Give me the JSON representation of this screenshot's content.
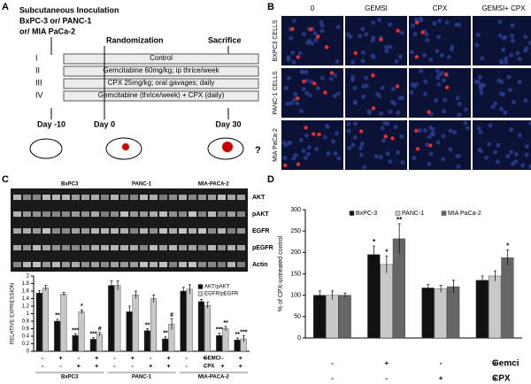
{
  "panel_a": {
    "letter": "A",
    "inoculation": [
      "Subcutaneous Inoculation",
      "BxPC-3 or/ PANC-1",
      "or/ MIA PaCa-2"
    ],
    "randomization": "Randomization",
    "sacrifice": "Sacrifice",
    "groups": [
      {
        "id": "I",
        "text": "Control"
      },
      {
        "id": "II",
        "text": "Gemcitabine 60mg/kg; ip thrice/week"
      },
      {
        "id": "III",
        "text": "CPX 25mg/kg; oral gavages; daily"
      },
      {
        "id": "IV",
        "text": "Gemcitabine (thrice/week) + CPX (daily)"
      }
    ],
    "days": [
      "Day -10",
      "Day 0",
      "Day 30"
    ],
    "question": "?"
  },
  "panel_b": {
    "letter": "B",
    "columns": [
      "0",
      "GEMSI",
      "CPX",
      "GEMSI+ CPX"
    ],
    "rows": [
      "BXPC3 CELLS",
      "PANC-1 CELLS",
      "MIA PaCa-2"
    ]
  },
  "panel_c": {
    "letter": "C",
    "blot_rows": [
      "AKT",
      "pAKT",
      "EGFR",
      "pEGFR",
      "Actin"
    ]
  },
  "panel_d": {
    "letter": "D"
  },
  "chart_data": [
    {
      "type": "bar",
      "ylabel": "RELATIVE EXPRESSION",
      "ylim": [
        0,
        2
      ],
      "yticks": [
        0,
        0.2,
        0.4,
        0.6,
        0.8,
        1,
        1.2,
        1.4,
        1.6,
        1.8,
        2
      ],
      "groups": [
        "BxPC3",
        "PANC-1",
        "MIA-PACA-2"
      ],
      "gemci_label": "GEMCI",
      "cpx_label": "CPX",
      "gemci": [
        "-",
        "+",
        "-",
        "+",
        "-",
        "+",
        "-",
        "+",
        "-",
        "+",
        "-",
        "+"
      ],
      "cpx": [
        "-",
        "-",
        "+",
        "+",
        "-",
        "-",
        "+",
        "+",
        "-",
        "-",
        "+",
        "+"
      ],
      "legend": "upper right",
      "series": [
        {
          "name": "AKT/pAKT",
          "color": "#111111",
          "values": [
            1.55,
            0.8,
            0.42,
            0.32,
            1.75,
            1.05,
            0.55,
            0.33,
            1.6,
            1.32,
            0.42,
            0.3
          ],
          "errors": [
            0.06,
            0.05,
            0.04,
            0.04,
            0.12,
            0.15,
            0.05,
            0.05,
            0.1,
            0.06,
            0.06,
            0.05
          ],
          "annotations": [
            null,
            "**",
            "***",
            "***",
            null,
            null,
            "**",
            "**",
            null,
            null,
            "***",
            "**"
          ]
        },
        {
          "name": "EGFR/pEGFR",
          "color": "#c8c8c8",
          "values": [
            1.68,
            1.52,
            1.05,
            0.45,
            1.75,
            1.5,
            1.4,
            0.72,
            1.65,
            1.22,
            0.6,
            0.33
          ],
          "errors": [
            0.07,
            0.05,
            0.05,
            0.05,
            0.12,
            0.1,
            0.1,
            0.15,
            0.12,
            0.08,
            0.06,
            0.08
          ],
          "annotations": [
            null,
            null,
            "*",
            "#",
            null,
            null,
            null,
            "#",
            null,
            null,
            "**",
            "***"
          ]
        }
      ]
    },
    {
      "type": "bar",
      "ylabel": "% of CPX-untreated control",
      "ylim": [
        0,
        300
      ],
      "yticks": [
        0,
        50,
        100,
        150,
        200,
        250,
        300
      ],
      "gemci_label": "Gemci",
      "cpx_label": "CPX",
      "gemci": [
        "-",
        "+",
        "-",
        "+"
      ],
      "cpx": [
        "-",
        "-",
        "+",
        "+"
      ],
      "legend": "upper center",
      "series": [
        {
          "name": "BxPC-3",
          "color": "#111111",
          "values": [
            100,
            195,
            117,
            135
          ],
          "errors": [
            10,
            20,
            8,
            10
          ],
          "annotations": [
            null,
            "*",
            null,
            null
          ]
        },
        {
          "name": "PANC-1",
          "color": "#c8c8c8",
          "values": [
            100,
            172,
            115,
            145
          ],
          "errors": [
            10,
            20,
            8,
            12
          ],
          "annotations": [
            null,
            "*",
            null,
            null
          ]
        },
        {
          "name": "MIA PaCa-2",
          "color": "#666666",
          "values": [
            100,
            232,
            120,
            188
          ],
          "errors": [
            5,
            35,
            15,
            18
          ],
          "annotations": [
            null,
            "**",
            null,
            "*"
          ]
        }
      ]
    }
  ]
}
